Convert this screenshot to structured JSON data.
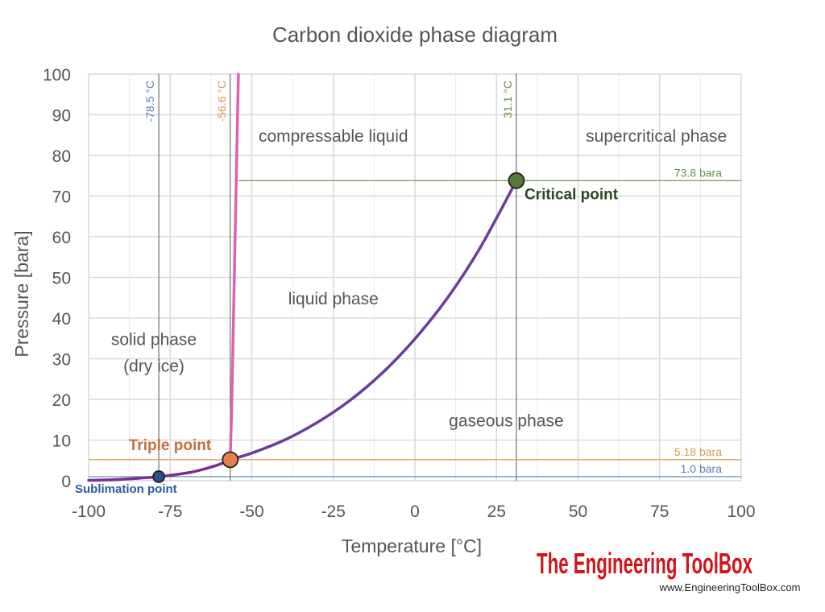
{
  "chart_data": {
    "type": "line",
    "title": "Carbon dioxide phase diagram",
    "xlabel": "Temperature [°C]",
    "ylabel": "Pressure [bara]",
    "xlim": [
      -100,
      100
    ],
    "ylim": [
      0,
      100
    ],
    "x_ticks": [
      "-100",
      "-75",
      "-50",
      "-25",
      "0",
      "25",
      "50",
      "75",
      "100"
    ],
    "y_ticks": [
      "0",
      "10",
      "20",
      "30",
      "40",
      "50",
      "60",
      "70",
      "80",
      "90",
      "100"
    ],
    "grid": true,
    "series": [
      {
        "key": "sublimation",
        "color": "#7a2e8e",
        "x": [
          -100,
          -95,
          -90,
          -85,
          -78.5,
          -70,
          -65,
          -60,
          -56.6
        ],
        "y": [
          0.1,
          0.2,
          0.35,
          0.6,
          1.0,
          1.9,
          2.8,
          4.0,
          5.18
        ]
      },
      {
        "key": "melting",
        "color": "#e060b0",
        "x": [
          -56.6,
          -56.1,
          -55.6,
          -55.1,
          -54.6,
          -54.1
        ],
        "y": [
          5.18,
          20,
          40,
          60,
          80,
          100
        ]
      },
      {
        "key": "vaporization",
        "color": "#6a3d9a",
        "x": [
          -56.6,
          -50,
          -40,
          -30,
          -20,
          -10,
          0,
          10,
          20,
          31.1
        ],
        "y": [
          5.18,
          6.8,
          10.0,
          14.3,
          19.7,
          26.5,
          34.9,
          45.0,
          57.3,
          73.8
        ]
      }
    ],
    "reference_lines": [
      {
        "orientation": "vertical",
        "x": -78.5,
        "label": "-78.5 °C",
        "color": "#5b7fb5"
      },
      {
        "orientation": "vertical",
        "x": -56.6,
        "label": "-56.6 °C",
        "color": "#d99a4a"
      },
      {
        "orientation": "vertical",
        "x": 31.1,
        "label": "31.1 °C",
        "color": "#6b8e4e"
      },
      {
        "orientation": "horizontal",
        "y": 73.8,
        "x_from": -54.1,
        "label": "73.8 bara",
        "color": "#6b8e4e"
      },
      {
        "orientation": "horizontal",
        "y": 5.18,
        "label": "5.18 bara",
        "color": "#d99a4a"
      },
      {
        "orientation": "horizontal",
        "y": 1.0,
        "label": "1.0 bara",
        "color": "#5b7fb5"
      }
    ],
    "points": [
      {
        "key": "sublimation",
        "label": "Sublimation point",
        "x": -78.5,
        "y": 1.0,
        "fill": "#2a4f8a",
        "text_color": "#2a5aa0"
      },
      {
        "key": "triple",
        "label": "Triple point",
        "x": -56.6,
        "y": 5.18,
        "fill": "#e8804a",
        "text_color": "#c0703a"
      },
      {
        "key": "critical",
        "label": "Critical point",
        "x": 31.1,
        "y": 73.8,
        "fill": "#557a3a",
        "text_color": "#2f4a22"
      }
    ],
    "regions": [
      {
        "key": "compressable-liquid",
        "lines": [
          "compressable liquid"
        ],
        "x": -25,
        "y": 85
      },
      {
        "key": "supercritical",
        "lines": [
          "supercritical phase"
        ],
        "x": 74,
        "y": 85
      },
      {
        "key": "liquid",
        "lines": [
          "liquid phase"
        ],
        "x": -25,
        "y": 45
      },
      {
        "key": "solid",
        "lines": [
          "solid phase",
          "(dry ice)"
        ],
        "x": -80,
        "y": 35
      },
      {
        "key": "gaseous",
        "lines": [
          "gaseous phase"
        ],
        "x": 28,
        "y": 15
      }
    ]
  },
  "branding": {
    "name": "The Engineering ToolBox",
    "url": "www.EngineeringToolBox.com"
  }
}
